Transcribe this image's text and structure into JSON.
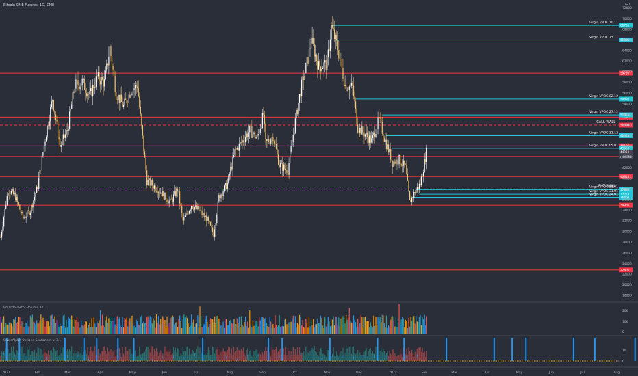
{
  "header": {
    "title": "Bitcoin CME Futures, 1D, CME",
    "volume_panel": "SmartInvestor Volume 3.0",
    "options_panel": "SwissAlpha Options Sentiment v. 3.1"
  },
  "colors": {
    "background": "#2a2e39",
    "candle_up": "#ffffff",
    "candle_down": "#f7c46c",
    "level_red": "#f23645",
    "level_cyan": "#22c5d8",
    "dashed_green": "#4caf50",
    "hist_green": "#26a69a",
    "hist_red": "#ef5350",
    "bar_blue": "#2196f3",
    "bar_orange": "#ff9800",
    "bar_purple": "#9c27b0"
  },
  "chart_data": {
    "type": "candlestick",
    "x_ticks": [
      "2021",
      "Feb",
      "Mar",
      "Apr",
      "May",
      "Jun",
      "Jul",
      "Aug",
      "Sep",
      "Oct",
      "Nov",
      "Dec",
      "2022",
      "Feb",
      "Mar",
      "Apr",
      "May",
      "Jun",
      "Jul",
      "Aug"
    ],
    "y_ticks": [
      "72000",
      "70000",
      "68000",
      "66000",
      "64000",
      "62000",
      "60000",
      "58000",
      "56000",
      "54000",
      "52000",
      "50000",
      "48000",
      "46000",
      "44000",
      "42000",
      "40000",
      "38000",
      "36000",
      "34000",
      "32000",
      "30000",
      "28000",
      "26000",
      "24000",
      "22000",
      "20000",
      "18000"
    ],
    "ylim": [
      17000,
      73500
    ],
    "currency": "USD",
    "last_price": "44950",
    "countdown": "14:05:48",
    "price_series": [
      [
        "2021-01-01",
        28900
      ],
      [
        "2021-01-08",
        38000
      ],
      [
        "2021-01-15",
        36500
      ],
      [
        "2021-01-22",
        32500
      ],
      [
        "2021-01-29",
        34000
      ],
      [
        "2021-02-05",
        38500
      ],
      [
        "2021-02-12",
        47500
      ],
      [
        "2021-02-19",
        55000
      ],
      [
        "2021-02-26",
        46000
      ],
      [
        "2021-03-05",
        49000
      ],
      [
        "2021-03-12",
        57500
      ],
      [
        "2021-03-19",
        58000
      ],
      [
        "2021-03-26",
        55500
      ],
      [
        "2021-04-02",
        59000
      ],
      [
        "2021-04-09",
        58000
      ],
      [
        "2021-04-14",
        64500
      ],
      [
        "2021-04-20",
        56000
      ],
      [
        "2021-04-27",
        53500
      ],
      [
        "2021-05-04",
        56500
      ],
      [
        "2021-05-10",
        57500
      ],
      [
        "2021-05-14",
        49500
      ],
      [
        "2021-05-19",
        39500
      ],
      [
        "2021-05-26",
        38500
      ],
      [
        "2021-06-03",
        37000
      ],
      [
        "2021-06-10",
        35500
      ],
      [
        "2021-06-17",
        38000
      ],
      [
        "2021-06-22",
        32000
      ],
      [
        "2021-06-30",
        35000
      ],
      [
        "2021-07-07",
        34000
      ],
      [
        "2021-07-14",
        32500
      ],
      [
        "2021-07-21",
        29500
      ],
      [
        "2021-07-26",
        36500
      ],
      [
        "2021-08-03",
        39000
      ],
      [
        "2021-08-10",
        45000
      ],
      [
        "2021-08-17",
        47000
      ],
      [
        "2021-08-24",
        49000
      ],
      [
        "2021-08-31",
        47500
      ],
      [
        "2021-09-06",
        52000
      ],
      [
        "2021-09-08",
        46500
      ],
      [
        "2021-09-15",
        48000
      ],
      [
        "2021-09-21",
        42500
      ],
      [
        "2021-09-29",
        41500
      ],
      [
        "2021-10-05",
        49500
      ],
      [
        "2021-10-11",
        56500
      ],
      [
        "2021-10-18",
        62500
      ],
      [
        "2021-10-21",
        66000
      ],
      [
        "2021-10-28",
        61000
      ],
      [
        "2021-11-05",
        61500
      ],
      [
        "2021-11-09",
        68500
      ],
      [
        "2021-11-15",
        64500
      ],
      [
        "2021-11-22",
        57500
      ],
      [
        "2021-11-29",
        57000
      ],
      [
        "2021-12-04",
        49500
      ],
      [
        "2021-12-10",
        48500
      ],
      [
        "2021-12-17",
        47000
      ],
      [
        "2021-12-24",
        51000
      ],
      [
        "2021-12-30",
        47000
      ],
      [
        "2022-01-06",
        43000
      ],
      [
        "2022-01-12",
        43500
      ],
      [
        "2022-01-18",
        42000
      ],
      [
        "2022-01-22",
        35500
      ],
      [
        "2022-01-27",
        37500
      ],
      [
        "2022-02-01",
        39000
      ],
      [
        "2022-02-07",
        44950
      ]
    ],
    "levels": [
      {
        "label": "59750",
        "value": 59750,
        "style": "red"
      },
      {
        "label": "51490",
        "value": 51490,
        "style": "red"
      },
      {
        "label": "50000",
        "value": 50000,
        "style": "red-dashed",
        "text": "CALL WALL"
      },
      {
        "label": "46105",
        "value": 46105,
        "style": "red"
      },
      {
        "label": "44105",
        "value": 44105,
        "style": "red"
      },
      {
        "label": "40345",
        "value": 40345,
        "style": "red"
      },
      {
        "label": "34960",
        "value": 34960,
        "style": "red"
      },
      {
        "label": "22800",
        "value": 22800,
        "style": "red"
      },
      {
        "label": "38000",
        "value": 38000,
        "style": "green-dashed",
        "text": "PUT WALL"
      }
    ],
    "vpoc": [
      {
        "name": "Virgin VPOC 10.11",
        "value": 68735,
        "start": "2021-11-10",
        "label": "68735"
      },
      {
        "name": "Virgin VPOC 15.11",
        "value": 65995,
        "start": "2021-11-15",
        "label": "65995"
      },
      {
        "name": "Virgin VPOC 02.12",
        "value": 54890,
        "start": "2021-12-02",
        "label": "54890"
      },
      {
        "name": "Virgin VPOC 27.12",
        "value": 51915,
        "start": "2021-12-27",
        "label": "51915"
      },
      {
        "name": "Virgin VPOC 31.12",
        "value": 48015,
        "start": "2021-12-31",
        "label": "48015"
      },
      {
        "name": "Virgin VPOC 05.01",
        "value": 45650,
        "start": "2022-01-05",
        "label": "45650"
      },
      {
        "name": "Virgin VPOC 28.01",
        "value": 37880,
        "start": "2022-01-28",
        "label": "37880"
      },
      {
        "name": "Virgin VPOC 31.01",
        "value": 37018,
        "start": "2022-01-31",
        "label": "37018"
      },
      {
        "name": "Virgin VPOC 24.01",
        "value": 36460,
        "start": "2022-01-24",
        "label": "36460"
      }
    ],
    "volume_axis": [
      "20K",
      "10K",
      "0"
    ],
    "options_axis": [
      "10",
      "0"
    ]
  }
}
